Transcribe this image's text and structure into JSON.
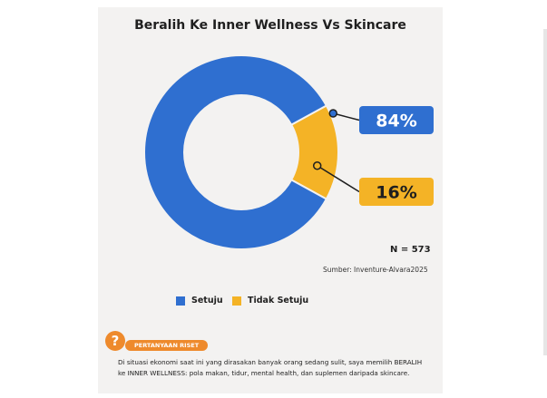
{
  "card": {
    "title": "Beralih Ke Inner Wellness Vs Skincare"
  },
  "chart_data": {
    "type": "pie",
    "variant": "donut",
    "title": "Beralih Ke Inner Wellness Vs Skincare",
    "categories": [
      "Setuju",
      "Tidak Setuju"
    ],
    "values": [
      84,
      16
    ],
    "value_labels": [
      "84%",
      "16%"
    ],
    "colors": [
      "#2f6fd0",
      "#f4b326"
    ],
    "n_label": "N = 573",
    "source": "Sumber: Inventure-Alvara2025",
    "legend_position": "bottom-left"
  },
  "legend": [
    {
      "label": "Setuju",
      "color": "#2f6fd0"
    },
    {
      "label": "Tidak Setuju",
      "color": "#f4b326"
    }
  ],
  "research": {
    "icon": "question-icon",
    "icon_glyph": "?",
    "tag": "PERTANYAAN RISET",
    "statement": "Di situasi ekonomi saat ini yang dirasakan banyak orang sedang sulit, saya memilih BERALIH ke INNER WELLNESS: pola makan, tidur, mental health, dan suplemen daripada skincare."
  },
  "colors": {
    "accent_orange": "#ee8a2c",
    "card_background": "#f3f2f1"
  }
}
